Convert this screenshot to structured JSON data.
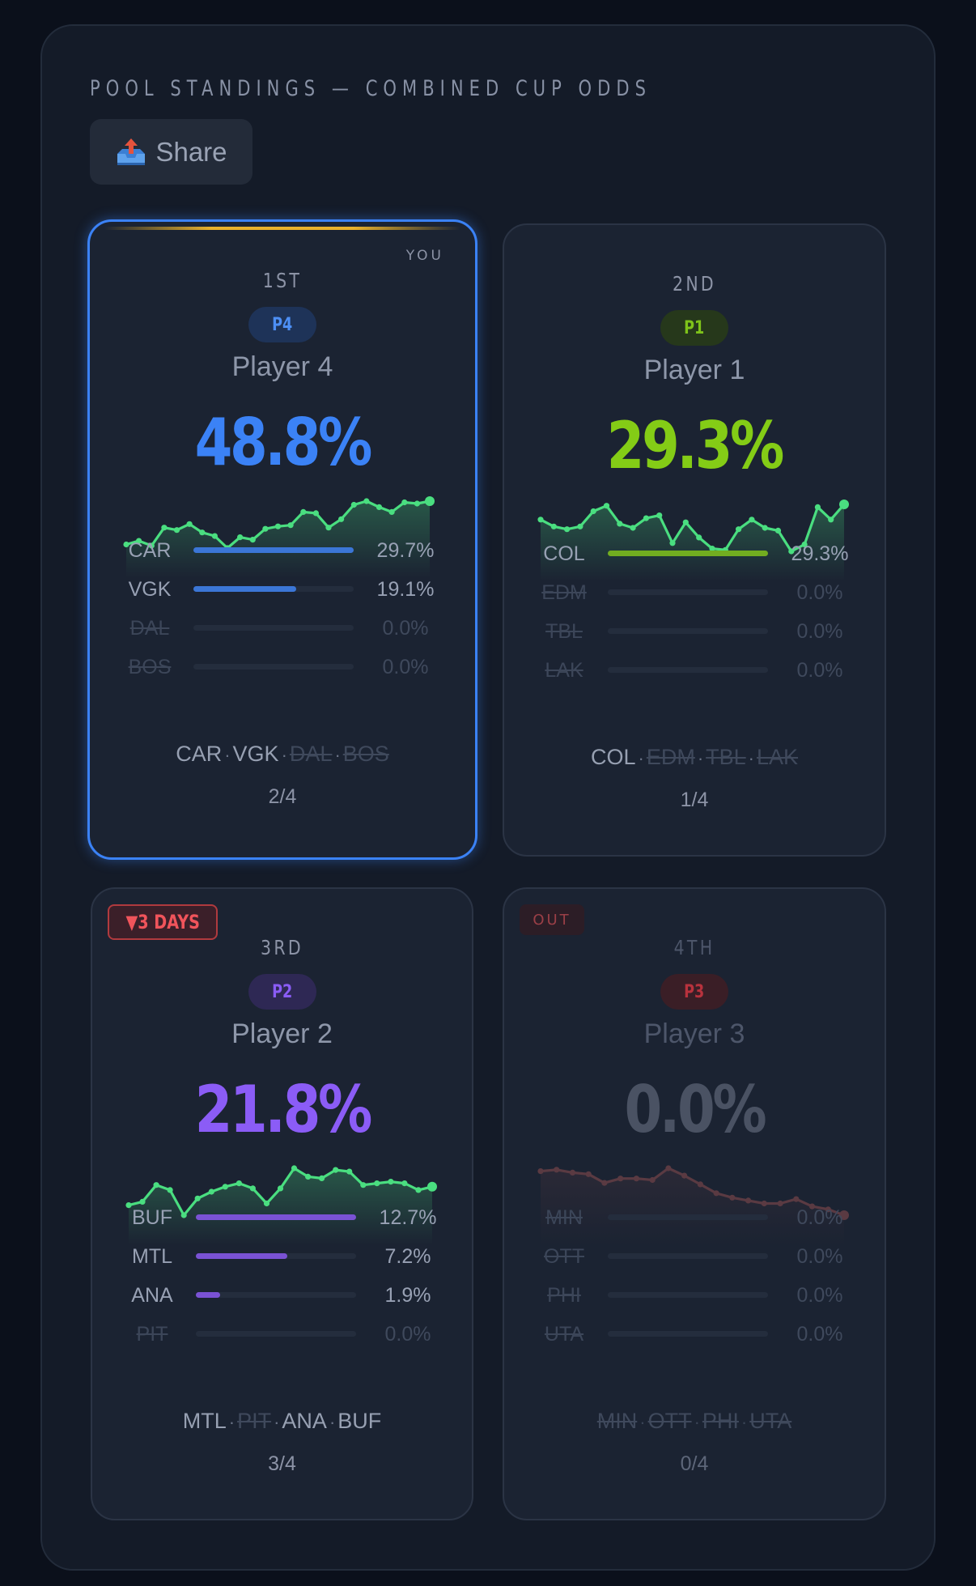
{
  "header": {
    "title": "POOL STANDINGS — COMBINED CUP ODDS"
  },
  "share": {
    "label": "Share",
    "icon": "outbox-tray-icon"
  },
  "colors": {
    "p4": "#3b82f6",
    "p1": "#84cc16",
    "p2": "#8b5cf6",
    "p3": "#c0303d",
    "spark_up": "#4ade80",
    "spark_out": "#5a3a42"
  },
  "cards": [
    {
      "rank": "1ST",
      "you_label": "YOU",
      "pill": "P4",
      "name": "Player 4",
      "pct": "48.8%",
      "sparkline": [
        47.2,
        47.5,
        47.1,
        48.6,
        48.4,
        48.9,
        48.2,
        47.9,
        46.9,
        47.8,
        47.6,
        48.5,
        48.7,
        48.8,
        49.9,
        49.8,
        48.6,
        49.3,
        50.5,
        50.8,
        50.3,
        49.9,
        50.7,
        50.6,
        50.8
      ],
      "teams": [
        {
          "abbr": "CAR",
          "value": "29.7%",
          "fill": 1.0,
          "eliminated": false
        },
        {
          "abbr": "VGK",
          "value": "19.1%",
          "fill": 0.64,
          "eliminated": false
        },
        {
          "abbr": "DAL",
          "value": "0.0%",
          "fill": 0,
          "eliminated": true
        },
        {
          "abbr": "BOS",
          "value": "0.0%",
          "fill": 0,
          "eliminated": true
        }
      ],
      "summary": [
        {
          "abbr": "CAR",
          "eliminated": false
        },
        {
          "abbr": "VGK",
          "eliminated": false
        },
        {
          "abbr": "DAL",
          "eliminated": true
        },
        {
          "abbr": "BOS",
          "eliminated": true
        }
      ],
      "count": "2/4"
    },
    {
      "rank": "2ND",
      "pill": "P1",
      "name": "Player 1",
      "pct": "29.3%",
      "sparkline": [
        30.8,
        30.3,
        30.1,
        30.3,
        31.4,
        31.8,
        30.5,
        30.2,
        30.9,
        31.1,
        29.1,
        30.6,
        29.5,
        28.7,
        28.6,
        30.1,
        30.8,
        30.2,
        30.0,
        28.5,
        29.0,
        31.7,
        30.8,
        31.9
      ],
      "teams": [
        {
          "abbr": "COL",
          "value": "29.3%",
          "fill": 1.0,
          "eliminated": false
        },
        {
          "abbr": "EDM",
          "value": "0.0%",
          "fill": 0,
          "eliminated": true
        },
        {
          "abbr": "TBL",
          "value": "0.0%",
          "fill": 0,
          "eliminated": true
        },
        {
          "abbr": "LAK",
          "value": "0.0%",
          "fill": 0,
          "eliminated": true
        }
      ],
      "summary": [
        {
          "abbr": "COL",
          "eliminated": false
        },
        {
          "abbr": "EDM",
          "eliminated": true
        },
        {
          "abbr": "TBL",
          "eliminated": true
        },
        {
          "abbr": "LAK",
          "eliminated": true
        }
      ],
      "count": "1/4"
    },
    {
      "badge": "3 DAYS",
      "rank": "3RD",
      "pill": "P2",
      "name": "Player 2",
      "pct": "21.8%",
      "sparkline": [
        20.3,
        20.5,
        21.5,
        21.2,
        19.7,
        20.7,
        21.1,
        21.4,
        21.6,
        21.3,
        20.4,
        21.3,
        22.5,
        22.0,
        21.9,
        22.4,
        22.3,
        21.5,
        21.6,
        21.7,
        21.6,
        21.2,
        21.4
      ],
      "teams": [
        {
          "abbr": "BUF",
          "value": "12.7%",
          "fill": 1.0,
          "eliminated": false
        },
        {
          "abbr": "MTL",
          "value": "7.2%",
          "fill": 0.57,
          "eliminated": false
        },
        {
          "abbr": "ANA",
          "value": "1.9%",
          "fill": 0.15,
          "eliminated": false
        },
        {
          "abbr": "PIT",
          "value": "0.0%",
          "fill": 0,
          "eliminated": true
        }
      ],
      "summary": [
        {
          "abbr": "MTL",
          "eliminated": false
        },
        {
          "abbr": "PIT",
          "eliminated": true
        },
        {
          "abbr": "ANA",
          "eliminated": false
        },
        {
          "abbr": "BUF",
          "eliminated": false
        }
      ],
      "count": "3/4"
    },
    {
      "badge": "OUT",
      "rank": "4TH",
      "pill": "P3",
      "name": "Player 3",
      "pct": "0.0%",
      "sparkline": [
        6.0,
        6.1,
        5.9,
        5.8,
        5.2,
        5.5,
        5.5,
        5.4,
        6.2,
        5.7,
        5.1,
        4.5,
        4.2,
        4.0,
        3.8,
        3.8,
        4.1,
        3.6,
        3.4,
        3.0
      ],
      "teams": [
        {
          "abbr": "MIN",
          "value": "0.0%",
          "fill": 0,
          "eliminated": true
        },
        {
          "abbr": "OTT",
          "value": "0.0%",
          "fill": 0,
          "eliminated": true
        },
        {
          "abbr": "PHI",
          "value": "0.0%",
          "fill": 0,
          "eliminated": true
        },
        {
          "abbr": "UTA",
          "value": "0.0%",
          "fill": 0,
          "eliminated": true
        }
      ],
      "summary": [
        {
          "abbr": "MIN",
          "eliminated": true
        },
        {
          "abbr": "OTT",
          "eliminated": true
        },
        {
          "abbr": "PHI",
          "eliminated": true
        },
        {
          "abbr": "UTA",
          "eliminated": true
        }
      ],
      "count": "0/4"
    }
  ]
}
